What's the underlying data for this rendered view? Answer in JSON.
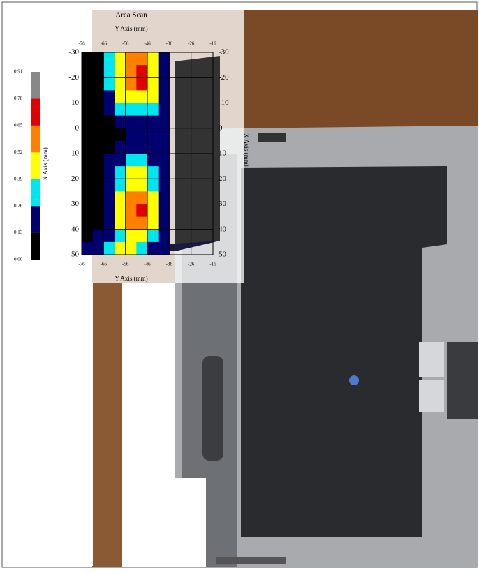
{
  "chart_data": {
    "type": "heatmap",
    "title": "Area Scan",
    "x_label": "Y Axis (mm)",
    "y_label": "X Axis (mm)",
    "xlim": [
      -76,
      -16
    ],
    "ylim": [
      -30,
      50
    ],
    "xticks": [
      -76,
      -66,
      -56,
      -46,
      -36,
      -26,
      -16
    ],
    "yticks": [
      -30,
      -20,
      -10,
      0,
      10,
      20,
      30,
      40,
      50
    ],
    "x": [
      -73.5,
      -68.5,
      -63.5,
      -58.5,
      -53.5,
      -48.5,
      -43.5,
      -38.5
    ],
    "y": [
      -27.5,
      -22.5,
      -17.5,
      -12.5,
      -7.5,
      -2.5,
      2.5,
      7.5,
      12.5,
      17.5,
      22.5,
      27.5,
      32.5,
      37.5,
      42.5,
      47.5
    ],
    "z": [
      [
        0,
        0,
        0.3,
        0.45,
        0.55,
        0.55,
        0.45,
        0.2
      ],
      [
        0,
        0,
        0.3,
        0.5,
        0.6,
        0.7,
        0.5,
        0.2
      ],
      [
        0,
        0,
        0.3,
        0.5,
        0.6,
        0.7,
        0.5,
        0.2
      ],
      [
        0,
        0,
        0.2,
        0.4,
        0.5,
        0.5,
        0.4,
        0.2
      ],
      [
        0,
        0,
        0.15,
        0.3,
        0.35,
        0.35,
        0.3,
        0.15
      ],
      [
        0,
        0,
        0,
        0.15,
        0.2,
        0.2,
        0.15,
        0.15
      ],
      [
        0,
        0,
        0,
        0,
        0.15,
        0.15,
        0.15,
        0.15
      ],
      [
        0,
        0,
        0,
        0.15,
        0.15,
        0.15,
        0.15,
        0.15
      ],
      [
        0,
        0,
        0.15,
        0.2,
        0.3,
        0.3,
        0.2,
        0.15
      ],
      [
        0,
        0,
        0.2,
        0.3,
        0.4,
        0.4,
        0.3,
        0.15
      ],
      [
        0,
        0,
        0.2,
        0.35,
        0.5,
        0.5,
        0.35,
        0.15
      ],
      [
        0,
        0,
        0.2,
        0.4,
        0.6,
        0.6,
        0.4,
        0.15
      ],
      [
        0,
        0,
        0.2,
        0.45,
        0.6,
        0.7,
        0.45,
        0.15
      ],
      [
        0,
        0,
        0.2,
        0.4,
        0.55,
        0.6,
        0.4,
        0.15
      ],
      [
        0,
        0.15,
        0.2,
        0.35,
        0.45,
        0.45,
        0.3,
        0.15
      ],
      [
        0.15,
        0.2,
        0.3,
        0.4,
        0.4,
        0.3,
        0.2,
        0.15
      ]
    ],
    "colorbar_ticks": [
      {
        "value": 0,
        "label": "0.00"
      },
      0.13,
      0.26,
      0.39,
      0.52,
      0.65,
      0.78,
      0.91
    ],
    "colors": [
      "#000000",
      "#00006e",
      "#00e6f0",
      "#ffff00",
      "#ff8000",
      "#e00000",
      "#888888"
    ],
    "grid": true
  }
}
